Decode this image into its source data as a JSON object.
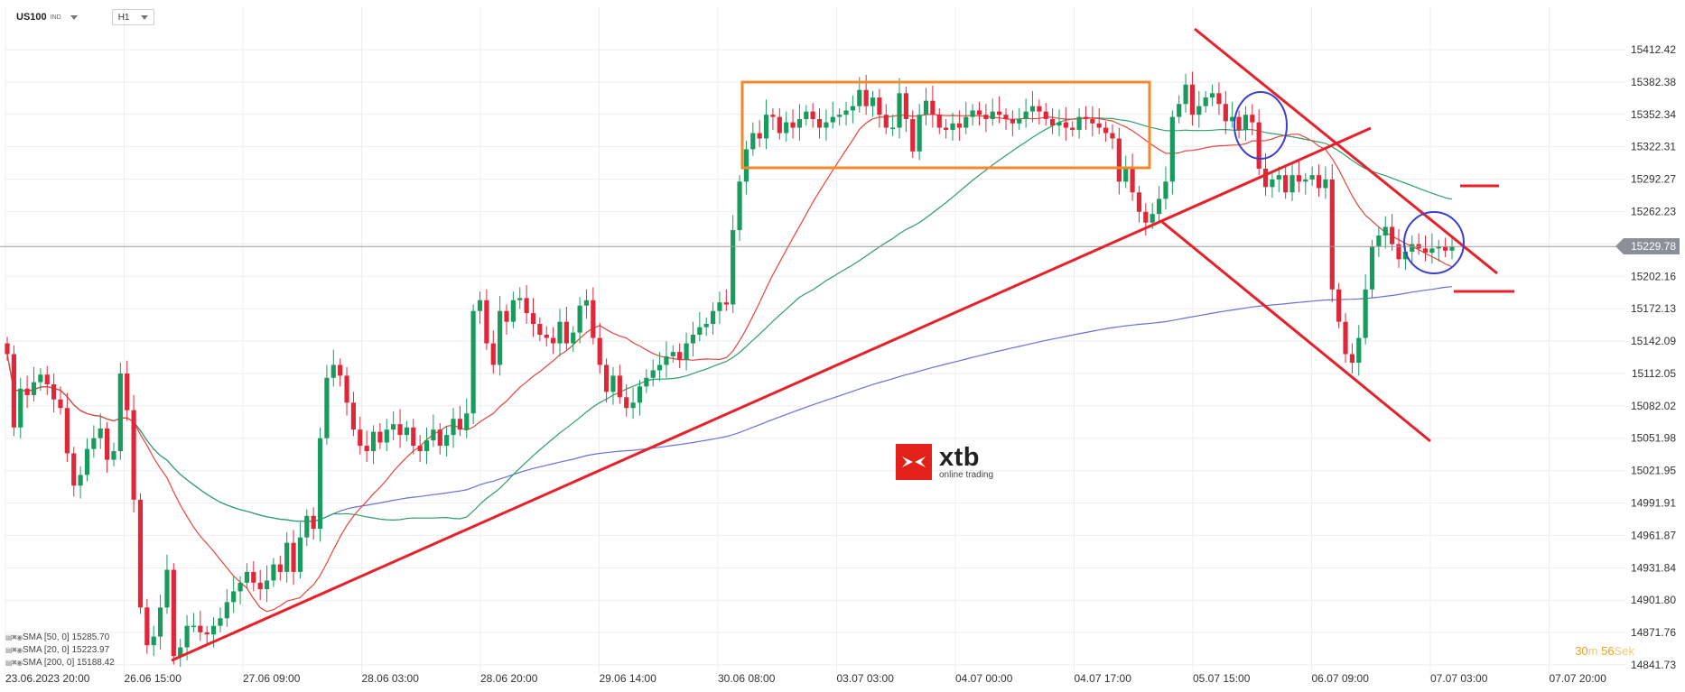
{
  "toolbar": {
    "symbol": "US100",
    "symbol_sub": "IND",
    "timeframe": "H1"
  },
  "indicators": [
    {
      "label": "SMA [50, 0] 15285.70",
      "color": "#2e9e6a",
      "icons": [
        "settings-icon",
        "close-icon",
        "eye-icon"
      ]
    },
    {
      "label": "SMA [20, 0] 15223.97",
      "color": "#e8453c",
      "icons": [
        "settings-icon",
        "close-icon",
        "eye-icon"
      ]
    },
    {
      "label": "SMA [200, 0] 15188.42",
      "color": "#6b6fd6",
      "icons": [
        "settings-icon",
        "close-icon",
        "eye-icon"
      ]
    }
  ],
  "current_price_label": "15229.78",
  "countdown": {
    "value1": "30",
    "unit1": "m",
    "value2": "56",
    "unit2": "Sek"
  },
  "logo": {
    "name": "xtb",
    "tagline": "online trading"
  },
  "colors": {
    "up": "#1a9b5e",
    "down": "#e0273a",
    "trendline": "#e8202a",
    "box": "#f28a2a",
    "circle": "#3b3fcf",
    "sma20": "#e8453c",
    "sma50": "#2e9e6a",
    "sma200": "#6b6fd6",
    "grid": "#eeeeee",
    "current_line": "#9a9a9a"
  },
  "chart_data": {
    "type": "candlestick",
    "title": "",
    "ylim": [
      14830,
      15440
    ],
    "y_ticks": [
      "15412.42",
      "15382.38",
      "15352.34",
      "15322.31",
      "15292.27",
      "15262.23",
      "15232.19",
      "15202.16",
      "15172.13",
      "15142.09",
      "15112.05",
      "15082.02",
      "15051.98",
      "15021.95",
      "14991.91",
      "14961.87",
      "14931.84",
      "14901.80",
      "14871.76",
      "14841.73"
    ],
    "x_ticks": [
      "23.06.2023 20:00",
      "26.06 15:00",
      "27.06 09:00",
      "28.06 03:00",
      "28.06 20:00",
      "29.06 14:00",
      "30.06 08:00",
      "03.07 03:00",
      "04.07 00:00",
      "04.07 17:00",
      "05.07 15:00",
      "06.07 09:00",
      "07.07 03:00",
      "07.07 20:00"
    ],
    "current_price": 15229.78,
    "closes": [
      15130,
      15062,
      15098,
      15092,
      15104,
      15111,
      15102,
      15088,
      15080,
      15038,
      15008,
      15018,
      15042,
      15052,
      15061,
      15032,
      15040,
      15112,
      15078,
      14995,
      14895,
      14860,
      14868,
      14895,
      14930,
      14850,
      14858,
      14878,
      14878,
      14872,
      14870,
      14878,
      14885,
      14900,
      14910,
      14918,
      14928,
      14918,
      14912,
      14920,
      14935,
      14928,
      14955,
      14928,
      14960,
      14980,
      14968,
      15052,
      15108,
      15120,
      15110,
      15085,
      15060,
      15045,
      15040,
      15058,
      15048,
      15060,
      15065,
      15055,
      15062,
      15045,
      15040,
      15050,
      15060,
      15045,
      15055,
      15070,
      15060,
      15075,
      15170,
      15180,
      15140,
      15120,
      15170,
      15160,
      15180,
      15182,
      15168,
      15158,
      15148,
      15145,
      15140,
      15160,
      15140,
      15150,
      15175,
      15180,
      15145,
      15120,
      15095,
      15110,
      15090,
      15080,
      15085,
      15100,
      15108,
      15115,
      15120,
      15128,
      15132,
      15125,
      15140,
      15148,
      15155,
      15158,
      15170,
      15178,
      15176,
      15245,
      15290,
      15320,
      15335,
      15330,
      15352,
      15350,
      15335,
      15345,
      15340,
      15348,
      15355,
      15348,
      15340,
      15345,
      15350,
      15352,
      15356,
      15360,
      15375,
      15360,
      15368,
      15352,
      15340,
      15340,
      15372,
      15348,
      15318,
      15352,
      15365,
      15352,
      15340,
      15338,
      15344,
      15340,
      15350,
      15356,
      15352,
      15348,
      15355,
      15352,
      15348,
      15344,
      15348,
      15355,
      15360,
      15355,
      15348,
      15342,
      15345,
      15340,
      15338,
      15350,
      15348,
      15344,
      15340,
      15335,
      15330,
      15290,
      15302,
      15280,
      15262,
      15252,
      15260,
      15274,
      15290,
      15350,
      15362,
      15380,
      15352,
      15360,
      15368,
      15372,
      15362,
      15346,
      15350,
      15338,
      15352,
      15345,
      15302,
      15285,
      15292,
      15296,
      15280,
      15296,
      15290,
      15292,
      15296,
      15284,
      15292,
      15190,
      15160,
      15130,
      15122,
      15145,
      15190,
      15230,
      15240,
      15248,
      15232,
      15218,
      15225,
      15232,
      15228,
      15224,
      15228,
      15230,
      15226,
      15230
    ]
  }
}
